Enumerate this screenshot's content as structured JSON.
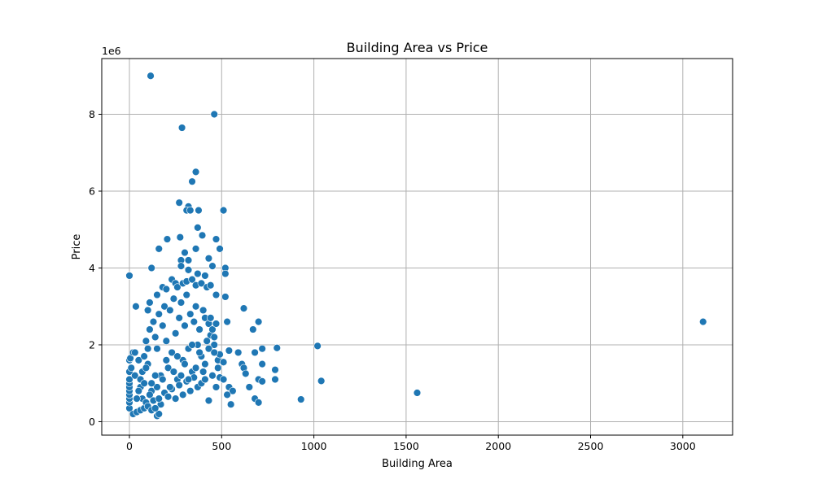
{
  "chart_data": {
    "type": "scatter",
    "title": "Building Area vs Price",
    "xlabel": "Building Area",
    "ylabel": "Price",
    "y_offset_label": "1e6",
    "xlim": [
      -150,
      3270
    ],
    "ylim": [
      -0.35,
      9.45
    ],
    "x_ticks": [
      0,
      500,
      1000,
      1500,
      2000,
      2500,
      3000
    ],
    "x_tick_labels": [
      "0",
      "500",
      "1000",
      "1500",
      "2000",
      "2500",
      "3000"
    ],
    "y_ticks": [
      0,
      2,
      4,
      6,
      8
    ],
    "y_tick_labels": [
      "0",
      "2",
      "4",
      "6",
      "8"
    ],
    "y_scale_note": "values in millions (×1e6)",
    "grid": true,
    "marker_color": "#1f77b4",
    "marker_edge_color": "#ffffff",
    "points": [
      [
        115,
        9.0
      ],
      [
        460,
        8.0
      ],
      [
        285,
        7.65
      ],
      [
        360,
        6.5
      ],
      [
        340,
        6.25
      ],
      [
        270,
        5.7
      ],
      [
        320,
        5.6
      ],
      [
        310,
        5.5
      ],
      [
        330,
        5.5
      ],
      [
        375,
        5.5
      ],
      [
        510,
        5.5
      ],
      [
        370,
        5.05
      ],
      [
        395,
        4.85
      ],
      [
        275,
        4.8
      ],
      [
        205,
        4.75
      ],
      [
        470,
        4.75
      ],
      [
        160,
        4.5
      ],
      [
        360,
        4.5
      ],
      [
        490,
        4.5
      ],
      [
        300,
        4.4
      ],
      [
        280,
        4.2
      ],
      [
        320,
        4.2
      ],
      [
        430,
        4.25
      ],
      [
        450,
        4.05
      ],
      [
        520,
        4.0
      ],
      [
        520,
        3.85
      ],
      [
        0,
        3.8
      ],
      [
        120,
        4.0
      ],
      [
        280,
        4.05
      ],
      [
        320,
        3.95
      ],
      [
        370,
        3.85
      ],
      [
        35,
        3.0
      ],
      [
        100,
        2.9
      ],
      [
        110,
        3.1
      ],
      [
        150,
        3.3
      ],
      [
        180,
        3.5
      ],
      [
        200,
        3.45
      ],
      [
        230,
        3.7
      ],
      [
        250,
        3.6
      ],
      [
        260,
        3.5
      ],
      [
        290,
        3.6
      ],
      [
        310,
        3.65
      ],
      [
        340,
        3.7
      ],
      [
        360,
        3.55
      ],
      [
        390,
        3.6
      ],
      [
        410,
        3.8
      ],
      [
        420,
        3.5
      ],
      [
        440,
        3.55
      ],
      [
        470,
        3.3
      ],
      [
        520,
        3.25
      ],
      [
        620,
        2.95
      ],
      [
        410,
        2.7
      ],
      [
        430,
        2.55
      ],
      [
        440,
        2.25
      ],
      [
        450,
        2.4
      ],
      [
        470,
        2.55
      ],
      [
        530,
        2.6
      ],
      [
        670,
        2.4
      ],
      [
        700,
        2.6
      ],
      [
        460,
        2.0
      ],
      [
        480,
        1.6
      ],
      [
        490,
        1.75
      ],
      [
        510,
        1.55
      ],
      [
        540,
        1.85
      ],
      [
        590,
        1.8
      ],
      [
        610,
        1.5
      ],
      [
        620,
        1.4
      ],
      [
        630,
        1.25
      ],
      [
        680,
        1.8
      ],
      [
        720,
        1.9
      ],
      [
        720,
        1.5
      ],
      [
        790,
        1.35
      ],
      [
        800,
        1.92
      ],
      [
        490,
        1.15
      ],
      [
        510,
        1.1
      ],
      [
        540,
        0.9
      ],
      [
        560,
        0.8
      ],
      [
        530,
        0.7
      ],
      [
        430,
        0.55
      ],
      [
        550,
        0.45
      ],
      [
        650,
        0.9
      ],
      [
        700,
        1.1
      ],
      [
        720,
        1.05
      ],
      [
        790,
        1.1
      ],
      [
        680,
        0.6
      ],
      [
        700,
        0.5
      ],
      [
        930,
        0.58
      ],
      [
        1020,
        1.97
      ],
      [
        1040,
        1.06
      ],
      [
        1560,
        0.75
      ],
      [
        3110,
        2.6
      ],
      [
        0,
        0.35
      ],
      [
        0,
        0.5
      ],
      [
        0,
        0.6
      ],
      [
        0,
        0.7
      ],
      [
        0,
        0.8
      ],
      [
        0,
        0.9
      ],
      [
        0,
        1.0
      ],
      [
        0,
        1.1
      ],
      [
        0,
        1.3
      ],
      [
        0,
        1.6
      ],
      [
        5,
        1.65
      ],
      [
        10,
        1.4
      ],
      [
        20,
        1.8
      ],
      [
        30,
        1.8
      ],
      [
        20,
        0.2
      ],
      [
        40,
        0.25
      ],
      [
        60,
        0.3
      ],
      [
        80,
        0.35
      ],
      [
        150,
        0.15
      ],
      [
        160,
        0.2
      ],
      [
        30,
        1.2
      ],
      [
        50,
        1.6
      ],
      [
        60,
        0.9
      ],
      [
        70,
        1.3
      ],
      [
        80,
        1.7
      ],
      [
        90,
        2.1
      ],
      [
        100,
        1.5
      ],
      [
        110,
        2.4
      ],
      [
        120,
        0.8
      ],
      [
        130,
        2.6
      ],
      [
        140,
        2.2
      ],
      [
        150,
        1.9
      ],
      [
        160,
        2.8
      ],
      [
        170,
        1.2
      ],
      [
        180,
        2.5
      ],
      [
        190,
        3.0
      ],
      [
        200,
        2.1
      ],
      [
        210,
        1.4
      ],
      [
        220,
        2.9
      ],
      [
        230,
        1.8
      ],
      [
        240,
        3.2
      ],
      [
        250,
        2.3
      ],
      [
        260,
        1.1
      ],
      [
        270,
        2.7
      ],
      [
        280,
        3.1
      ],
      [
        290,
        1.6
      ],
      [
        300,
        2.5
      ],
      [
        310,
        3.3
      ],
      [
        320,
        1.9
      ],
      [
        330,
        2.8
      ],
      [
        340,
        1.3
      ],
      [
        350,
        2.6
      ],
      [
        360,
        3.0
      ],
      [
        370,
        2.0
      ],
      [
        380,
        2.4
      ],
      [
        390,
        1.7
      ],
      [
        400,
        2.9
      ],
      [
        410,
        1.5
      ],
      [
        420,
        2.1
      ],
      [
        430,
        1.9
      ],
      [
        440,
        2.7
      ],
      [
        450,
        1.2
      ],
      [
        460,
        1.8
      ],
      [
        470,
        0.9
      ],
      [
        480,
        1.4
      ],
      [
        460,
        2.2
      ],
      [
        70,
        0.6
      ],
      [
        90,
        0.5
      ],
      [
        110,
        0.7
      ],
      [
        130,
        0.55
      ],
      [
        150,
        0.9
      ],
      [
        170,
        0.45
      ],
      [
        190,
        0.75
      ],
      [
        210,
        0.65
      ],
      [
        230,
        0.85
      ],
      [
        250,
        0.6
      ],
      [
        270,
        0.95
      ],
      [
        290,
        0.7
      ],
      [
        310,
        1.05
      ],
      [
        330,
        0.8
      ],
      [
        350,
        1.15
      ],
      [
        370,
        0.9
      ],
      [
        390,
        1.0
      ],
      [
        410,
        1.1
      ],
      [
        120,
        1.0
      ],
      [
        140,
        1.2
      ],
      [
        160,
        0.6
      ],
      [
        180,
        1.1
      ],
      [
        200,
        1.6
      ],
      [
        220,
        0.9
      ],
      [
        240,
        1.3
      ],
      [
        260,
        1.7
      ],
      [
        280,
        1.2
      ],
      [
        300,
        1.5
      ],
      [
        320,
        1.1
      ],
      [
        340,
        2.0
      ],
      [
        360,
        1.4
      ],
      [
        380,
        1.8
      ],
      [
        400,
        1.3
      ],
      [
        100,
        0.4
      ],
      [
        120,
        0.3
      ],
      [
        140,
        0.35
      ],
      [
        50,
        0.8
      ],
      [
        60,
        1.1
      ],
      [
        40,
        0.6
      ],
      [
        80,
        1.0
      ],
      [
        90,
        1.4
      ],
      [
        100,
        1.9
      ]
    ],
    "point_count_note": "points estimated from scatter cloud"
  }
}
